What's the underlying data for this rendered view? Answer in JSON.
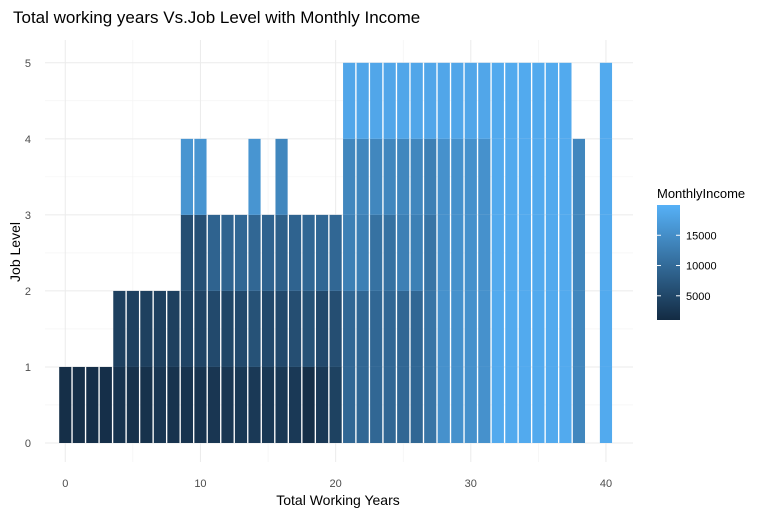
{
  "chart_data": {
    "type": "bar",
    "title": "Total working years Vs.Job Level with Monthly Income",
    "xlabel": "Total Working Years",
    "ylabel": "Job Level",
    "xlim": [
      -1.5,
      42
    ],
    "ylim": [
      -0.25,
      5.3
    ],
    "xticks": [
      0,
      10,
      20,
      30,
      40
    ],
    "yticks": [
      0,
      1,
      2,
      3,
      4,
      5
    ],
    "grid": true,
    "legend": {
      "title": "MonthlyIncome",
      "position": "right",
      "ticks": [
        5000,
        10000,
        15000
      ],
      "range": [
        1000,
        20000
      ],
      "color_low": "#132B43",
      "color_high": "#56B1F7"
    },
    "bars": [
      {
        "x": 0,
        "segments": [
          {
            "level": 1,
            "income": 1500
          }
        ]
      },
      {
        "x": 1,
        "segments": [
          {
            "level": 1,
            "income": 1500
          }
        ]
      },
      {
        "x": 2,
        "segments": [
          {
            "level": 1,
            "income": 1600
          }
        ]
      },
      {
        "x": 3,
        "segments": [
          {
            "level": 1,
            "income": 1600
          }
        ]
      },
      {
        "x": 4,
        "segments": [
          {
            "level": 1,
            "income": 2200
          },
          {
            "level": 2,
            "income": 4000
          }
        ]
      },
      {
        "x": 5,
        "segments": [
          {
            "level": 1,
            "income": 2000
          },
          {
            "level": 2,
            "income": 4000
          }
        ]
      },
      {
        "x": 6,
        "segments": [
          {
            "level": 1,
            "income": 2000
          },
          {
            "level": 2,
            "income": 4000
          }
        ]
      },
      {
        "x": 7,
        "segments": [
          {
            "level": 1,
            "income": 2600
          },
          {
            "level": 2,
            "income": 4000
          }
        ]
      },
      {
        "x": 8,
        "segments": [
          {
            "level": 1,
            "income": 2200
          },
          {
            "level": 2,
            "income": 4000
          }
        ]
      },
      {
        "x": 9,
        "segments": [
          {
            "level": 1,
            "income": 2300
          },
          {
            "level": 2,
            "income": 4600
          },
          {
            "level": 3,
            "income": 6000
          },
          {
            "level": 4,
            "income": 16000
          }
        ]
      },
      {
        "x": 10,
        "segments": [
          {
            "level": 1,
            "income": 2300
          },
          {
            "level": 2,
            "income": 4600
          },
          {
            "level": 3,
            "income": 6300
          },
          {
            "level": 4,
            "income": 16000
          }
        ]
      },
      {
        "x": 11,
        "segments": [
          {
            "level": 1,
            "income": 2600
          },
          {
            "level": 2,
            "income": 5300
          },
          {
            "level": 3,
            "income": 9000
          }
        ]
      },
      {
        "x": 12,
        "segments": [
          {
            "level": 1,
            "income": 2600
          },
          {
            "level": 2,
            "income": 4800
          },
          {
            "level": 3,
            "income": 9000
          }
        ]
      },
      {
        "x": 13,
        "segments": [
          {
            "level": 1,
            "income": 2800
          },
          {
            "level": 2,
            "income": 5300
          },
          {
            "level": 3,
            "income": 9500
          }
        ]
      },
      {
        "x": 14,
        "segments": [
          {
            "level": 1,
            "income": 3000
          },
          {
            "level": 2,
            "income": 6500
          },
          {
            "level": 3,
            "income": 9500
          },
          {
            "level": 4,
            "income": 16000
          }
        ]
      },
      {
        "x": 15,
        "segments": [
          {
            "level": 1,
            "income": 2800
          },
          {
            "level": 2,
            "income": 5300
          },
          {
            "level": 3,
            "income": 9000
          }
        ]
      },
      {
        "x": 16,
        "segments": [
          {
            "level": 1,
            "income": 2800
          },
          {
            "level": 2,
            "income": 5300
          },
          {
            "level": 3,
            "income": 8500
          },
          {
            "level": 4,
            "income": 14000
          }
        ]
      },
      {
        "x": 17,
        "segments": [
          {
            "level": 1,
            "income": 3000
          },
          {
            "level": 2,
            "income": 6000
          },
          {
            "level": 3,
            "income": 9000
          }
        ]
      },
      {
        "x": 18,
        "segments": [
          {
            "level": 1,
            "income": 1500
          },
          {
            "level": 2,
            "income": 6500
          },
          {
            "level": 3,
            "income": 9500
          }
        ]
      },
      {
        "x": 19,
        "segments": [
          {
            "level": 1,
            "income": 3000
          },
          {
            "level": 2,
            "income": 5300
          },
          {
            "level": 3,
            "income": 9500
          }
        ]
      },
      {
        "x": 20,
        "segments": [
          {
            "level": 1,
            "income": 4200
          },
          {
            "level": 2,
            "income": 6000
          },
          {
            "level": 3,
            "income": 9500
          }
        ]
      },
      {
        "x": 21,
        "segments": [
          {
            "level": 1,
            "income": 9500
          },
          {
            "level": 2,
            "income": 9500
          },
          {
            "level": 3,
            "income": 13000
          },
          {
            "level": 4,
            "income": 14000
          },
          {
            "level": 5,
            "income": 18500
          }
        ]
      },
      {
        "x": 22,
        "segments": [
          {
            "level": 1,
            "income": 9500
          },
          {
            "level": 2,
            "income": 9500
          },
          {
            "level": 3,
            "income": 13000
          },
          {
            "level": 4,
            "income": 14000
          },
          {
            "level": 5,
            "income": 18500
          }
        ]
      },
      {
        "x": 23,
        "segments": [
          {
            "level": 1,
            "income": 9500
          },
          {
            "level": 2,
            "income": 9500
          },
          {
            "level": 3,
            "income": 11000
          },
          {
            "level": 4,
            "income": 14000
          },
          {
            "level": 5,
            "income": 18500
          }
        ]
      },
      {
        "x": 24,
        "segments": [
          {
            "level": 1,
            "income": 9500
          },
          {
            "level": 2,
            "income": 9500
          },
          {
            "level": 3,
            "income": 11000
          },
          {
            "level": 4,
            "income": 14000
          },
          {
            "level": 5,
            "income": 18500
          }
        ]
      },
      {
        "x": 25,
        "segments": [
          {
            "level": 1,
            "income": 9500
          },
          {
            "level": 2,
            "income": 9500
          },
          {
            "level": 3,
            "income": 13000
          },
          {
            "level": 4,
            "income": 14000
          },
          {
            "level": 5,
            "income": 18500
          }
        ]
      },
      {
        "x": 26,
        "segments": [
          {
            "level": 1,
            "income": 9500
          },
          {
            "level": 2,
            "income": 9500
          },
          {
            "level": 3,
            "income": 13000
          },
          {
            "level": 4,
            "income": 14000
          },
          {
            "level": 5,
            "income": 18500
          }
        ]
      },
      {
        "x": 27,
        "segments": [
          {
            "level": 1,
            "income": 11500
          },
          {
            "level": 2,
            "income": 11500
          },
          {
            "level": 3,
            "income": 11500
          },
          {
            "level": 4,
            "income": 13000
          },
          {
            "level": 5,
            "income": 18500
          }
        ]
      },
      {
        "x": 28,
        "segments": [
          {
            "level": 1,
            "income": 15500
          },
          {
            "level": 2,
            "income": 15500
          },
          {
            "level": 3,
            "income": 15500
          },
          {
            "level": 4,
            "income": 15500
          },
          {
            "level": 5,
            "income": 18500
          }
        ]
      },
      {
        "x": 29,
        "segments": [
          {
            "level": 1,
            "income": 15500
          },
          {
            "level": 2,
            "income": 15500
          },
          {
            "level": 3,
            "income": 15500
          },
          {
            "level": 4,
            "income": 15500
          },
          {
            "level": 5,
            "income": 18500
          }
        ]
      },
      {
        "x": 30,
        "segments": [
          {
            "level": 1,
            "income": 15500
          },
          {
            "level": 2,
            "income": 15500
          },
          {
            "level": 3,
            "income": 15500
          },
          {
            "level": 4,
            "income": 15500
          },
          {
            "level": 5,
            "income": 18500
          }
        ]
      },
      {
        "x": 31,
        "segments": [
          {
            "level": 1,
            "income": 15500
          },
          {
            "level": 2,
            "income": 15500
          },
          {
            "level": 3,
            "income": 15500
          },
          {
            "level": 4,
            "income": 15500
          },
          {
            "level": 5,
            "income": 18500
          }
        ]
      },
      {
        "x": 32,
        "segments": [
          {
            "level": 1,
            "income": 19000
          },
          {
            "level": 2,
            "income": 19000
          },
          {
            "level": 3,
            "income": 19000
          },
          {
            "level": 4,
            "income": 19000
          },
          {
            "level": 5,
            "income": 19000
          }
        ]
      },
      {
        "x": 33,
        "segments": [
          {
            "level": 1,
            "income": 19000
          },
          {
            "level": 2,
            "income": 19000
          },
          {
            "level": 3,
            "income": 19000
          },
          {
            "level": 4,
            "income": 19000
          },
          {
            "level": 5,
            "income": 19000
          }
        ]
      },
      {
        "x": 34,
        "segments": [
          {
            "level": 1,
            "income": 19000
          },
          {
            "level": 2,
            "income": 19000
          },
          {
            "level": 3,
            "income": 19000
          },
          {
            "level": 4,
            "income": 19000
          },
          {
            "level": 5,
            "income": 19000
          }
        ]
      },
      {
        "x": 35,
        "segments": [
          {
            "level": 1,
            "income": 19000
          },
          {
            "level": 2,
            "income": 19000
          },
          {
            "level": 3,
            "income": 19000
          },
          {
            "level": 4,
            "income": 19000
          },
          {
            "level": 5,
            "income": 19000
          }
        ]
      },
      {
        "x": 36,
        "segments": [
          {
            "level": 1,
            "income": 19000
          },
          {
            "level": 2,
            "income": 19000
          },
          {
            "level": 3,
            "income": 19000
          },
          {
            "level": 4,
            "income": 19000
          },
          {
            "level": 5,
            "income": 19000
          }
        ]
      },
      {
        "x": 37,
        "segments": [
          {
            "level": 1,
            "income": 19000
          },
          {
            "level": 2,
            "income": 19000
          },
          {
            "level": 3,
            "income": 19000
          },
          {
            "level": 4,
            "income": 19000
          },
          {
            "level": 5,
            "income": 19000
          }
        ]
      },
      {
        "x": 38,
        "segments": [
          {
            "level": 1,
            "income": 14000
          },
          {
            "level": 2,
            "income": 14000
          },
          {
            "level": 3,
            "income": 14000
          },
          {
            "level": 4,
            "income": 14000
          }
        ]
      },
      {
        "x": 40,
        "segments": [
          {
            "level": 1,
            "income": 19000
          },
          {
            "level": 2,
            "income": 19000
          },
          {
            "level": 3,
            "income": 19000
          },
          {
            "level": 4,
            "income": 19000
          },
          {
            "level": 5,
            "income": 19000
          }
        ]
      }
    ]
  }
}
